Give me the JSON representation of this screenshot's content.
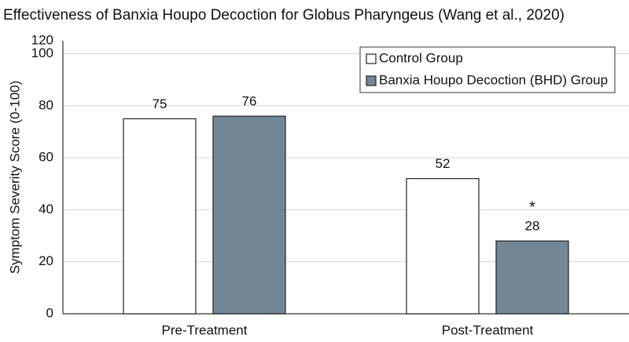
{
  "chart_data": {
    "type": "bar",
    "title": "Effectiveness of Banxia Houpo Decoction for Globus Pharyngeus (Wang et al., 2020)",
    "y_label": "Symptom Severity Score (0-100)",
    "categories": [
      "Pre-Treatment",
      "Post-Treatment"
    ],
    "series": [
      {
        "name": "Control Group",
        "color": "#ffffff",
        "values": [
          75,
          52
        ]
      },
      {
        "name": "Banxia Houpo Decoction (BHD) Group",
        "color": "#738797",
        "values": [
          76,
          28
        ]
      }
    ],
    "annotation": "*",
    "ylim": [
      0,
      105
    ],
    "yticks": [
      0,
      20,
      40,
      60,
      80,
      100,
      120
    ],
    "grid": true,
    "legend": "top-right"
  }
}
